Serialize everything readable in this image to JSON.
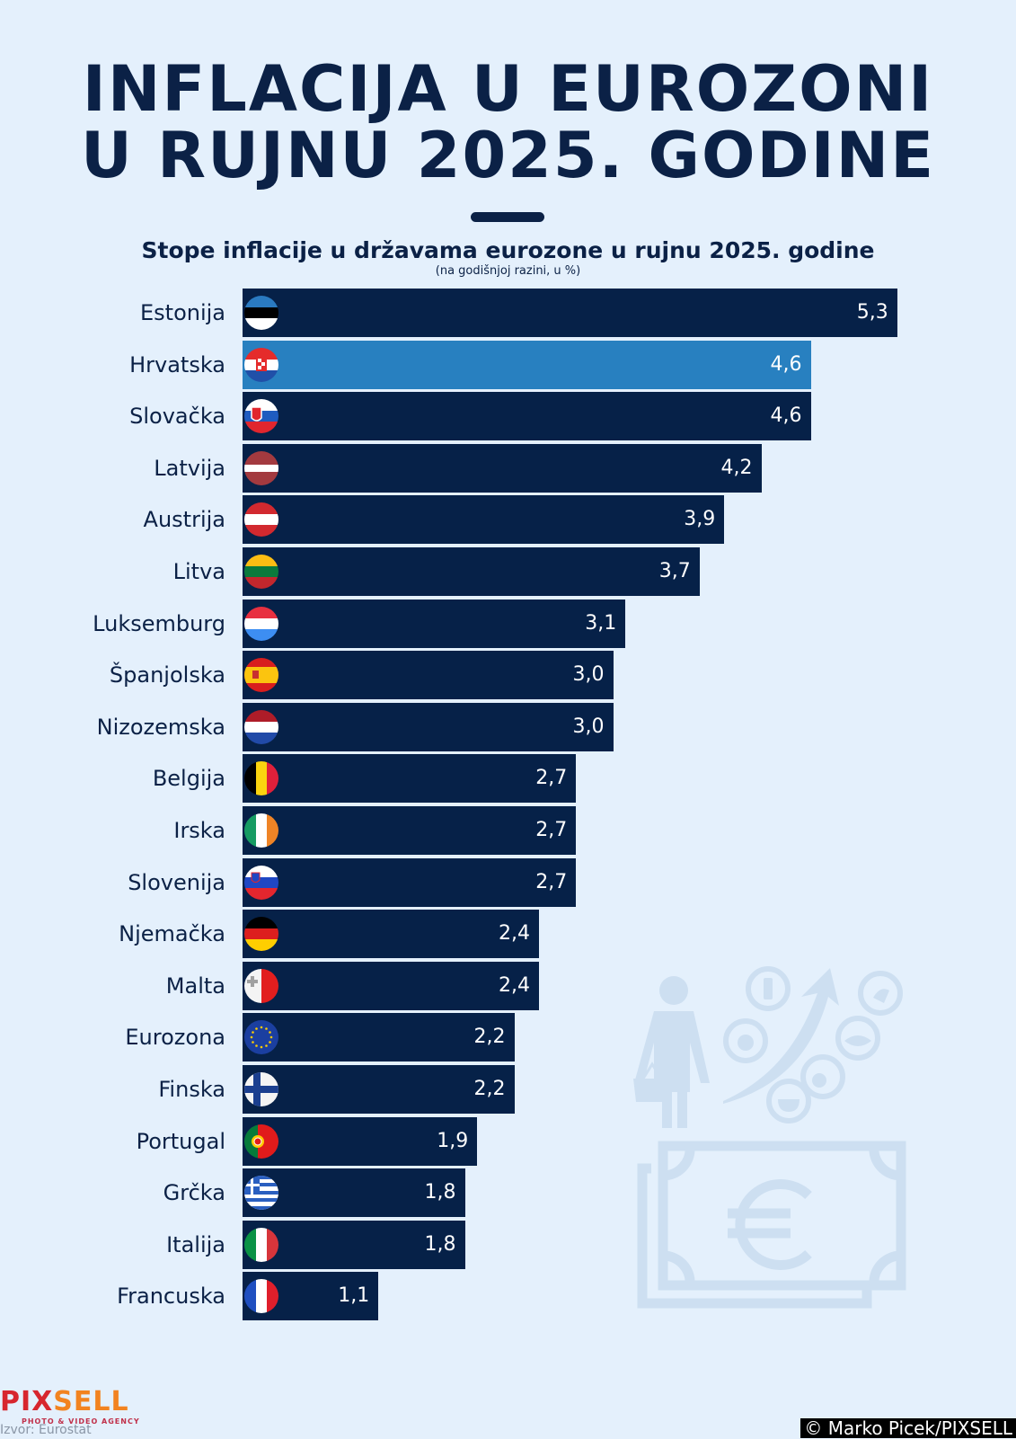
{
  "header": {
    "title_line1": "INFLACIJA U EUROZONI",
    "title_line2": "U RUJNU 2025. GODINE"
  },
  "colors": {
    "background": "#e4f0fc",
    "bar": "#062148",
    "highlight_bar": "#2880c0",
    "text": "#0b2146"
  },
  "chart_data": {
    "type": "bar",
    "orientation": "horizontal",
    "title": "Stope inflacije u državama eurozone u rujnu 2025. godine",
    "subtitle": "(na godišnjoj razini, u %)",
    "xlabel": "",
    "ylabel": "",
    "xlim": [
      0,
      5.3
    ],
    "grid": false,
    "categories": [
      "Estonija",
      "Hrvatska",
      "Slovačka",
      "Latvija",
      "Austrija",
      "Litva",
      "Luksemburg",
      "Španjolska",
      "Nizozemska",
      "Belgija",
      "Irska",
      "Slovenija",
      "Njemačka",
      "Malta",
      "Eurozona",
      "Finska",
      "Portugal",
      "Grčka",
      "Italija",
      "Francuska"
    ],
    "values": [
      5.3,
      4.6,
      4.6,
      4.2,
      3.9,
      3.7,
      3.1,
      3.0,
      3.0,
      2.7,
      2.7,
      2.7,
      2.4,
      2.4,
      2.2,
      2.2,
      1.9,
      1.8,
      1.8,
      1.1
    ],
    "value_labels": [
      "5,3",
      "4,6",
      "4,6",
      "4,2",
      "3,9",
      "3,7",
      "3,1",
      "3,0",
      "3,0",
      "2,7",
      "2,7",
      "2,7",
      "2,4",
      "2,4",
      "2,2",
      "2,2",
      "1,9",
      "1,8",
      "1,8",
      "1,1"
    ],
    "flags": [
      "estonia-flag",
      "croatia-flag",
      "slovakia-flag",
      "latvia-flag",
      "austria-flag",
      "lithuania-flag",
      "luxembourg-flag",
      "spain-flag",
      "netherlands-flag",
      "belgium-flag",
      "ireland-flag",
      "slovenia-flag",
      "germany-flag",
      "malta-flag",
      "eu-flag",
      "finland-flag",
      "portugal-flag",
      "greece-flag",
      "italy-flag",
      "france-flag"
    ],
    "highlighted": "Hrvatska"
  },
  "footer": {
    "logo_part1": "PIX",
    "logo_part2": "SELL",
    "logo_tagline": "PHOTO & VIDEO AGENCY",
    "source": "Izvor: Eurostat",
    "credit": "© Marko Picek/PIXSELL"
  },
  "illustration": {
    "icons": [
      "shopper-with-basket-icon",
      "rising-arrow-icon",
      "milk-bottle-icon",
      "apple-icon",
      "horse-meat-icon",
      "fish-icon",
      "chicken-leg-icon",
      "bowl-icon",
      "euro-banknote-icon"
    ]
  }
}
